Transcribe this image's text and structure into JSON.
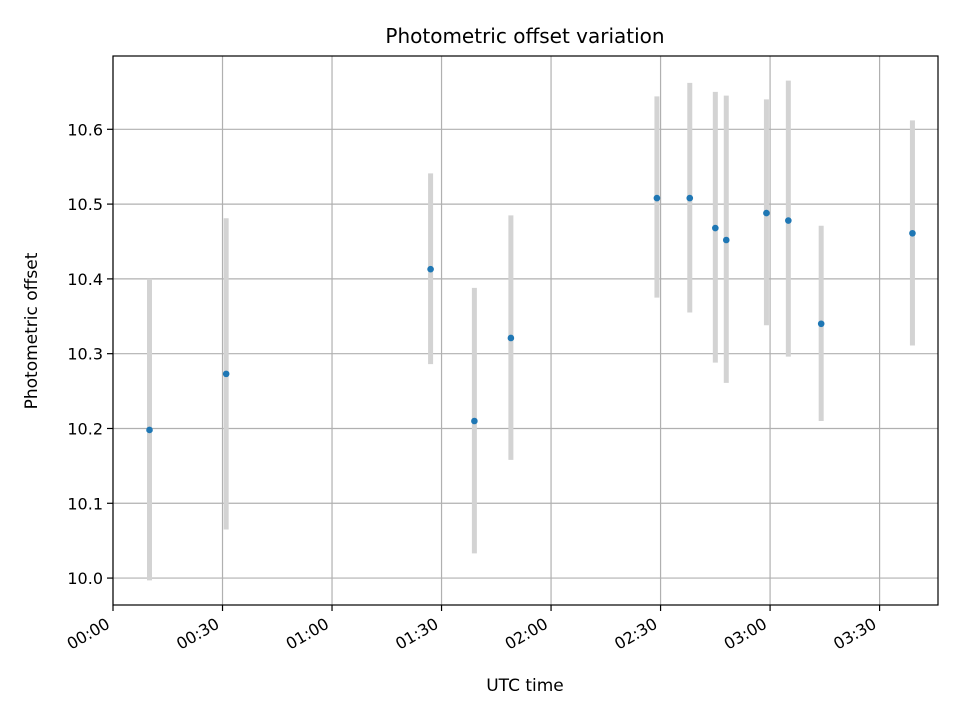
{
  "chart_data": {
    "type": "scatter",
    "title": "Photometric offset variation",
    "xlabel": "UTC time",
    "ylabel": "Photometric offset",
    "x_ticks": [
      "00:00",
      "00:30",
      "01:00",
      "01:30",
      "02:00",
      "02:30",
      "03:00",
      "03:30"
    ],
    "y_ticks": [
      "10.0",
      "10.1",
      "10.2",
      "10.3",
      "10.4",
      "10.5",
      "10.6"
    ],
    "xlim": [
      "00:00",
      "03:46"
    ],
    "ylim": [
      9.964,
      10.698
    ],
    "grid": true,
    "colors": {
      "point": "#1f77b4",
      "error_bar": "#d3d3d3",
      "grid": "#b0b0b0"
    },
    "points": [
      {
        "x": "00:10",
        "y": 10.198,
        "y_low": 9.997,
        "y_high": 10.4
      },
      {
        "x": "00:31",
        "y": 10.273,
        "y_low": 10.065,
        "y_high": 10.481
      },
      {
        "x": "01:27",
        "y": 10.413,
        "y_low": 10.286,
        "y_high": 10.541
      },
      {
        "x": "01:39",
        "y": 10.21,
        "y_low": 10.033,
        "y_high": 10.388
      },
      {
        "x": "01:49",
        "y": 10.321,
        "y_low": 10.158,
        "y_high": 10.485
      },
      {
        "x": "02:29",
        "y": 10.508,
        "y_low": 10.375,
        "y_high": 10.644
      },
      {
        "x": "02:38",
        "y": 10.508,
        "y_low": 10.355,
        "y_high": 10.662
      },
      {
        "x": "02:45",
        "y": 10.468,
        "y_low": 10.288,
        "y_high": 10.65
      },
      {
        "x": "02:48",
        "y": 10.452,
        "y_low": 10.261,
        "y_high": 10.645
      },
      {
        "x": "02:59",
        "y": 10.488,
        "y_low": 10.338,
        "y_high": 10.64
      },
      {
        "x": "03:05",
        "y": 10.478,
        "y_low": 10.296,
        "y_high": 10.665
      },
      {
        "x": "03:14",
        "y": 10.34,
        "y_low": 10.21,
        "y_high": 10.471
      },
      {
        "x": "03:39",
        "y": 10.461,
        "y_low": 10.311,
        "y_high": 10.612
      }
    ]
  }
}
